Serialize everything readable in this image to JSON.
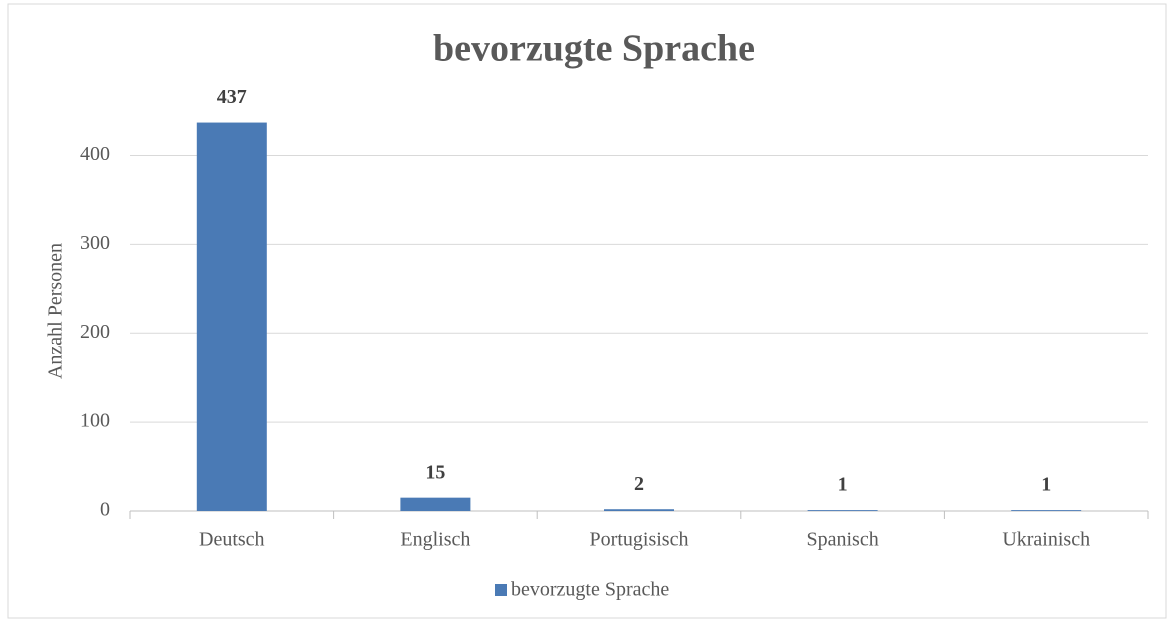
{
  "chart_data": {
    "type": "bar",
    "title": "bevorzugte Sprache",
    "y_label": "Anzahl Personen",
    "categories": [
      "Deutsch",
      "Englisch",
      "Portugisisch",
      "Spanisch",
      "Ukrainisch"
    ],
    "series": [
      {
        "name": "bevorzugte Sprache",
        "color": "#4a7ab5",
        "values": [
          437,
          15,
          2,
          1,
          1
        ]
      }
    ],
    "ylim": [
      0,
      450
    ],
    "yticks": [
      0,
      100,
      200,
      300,
      400
    ],
    "grid": true,
    "legend": "bottom"
  }
}
